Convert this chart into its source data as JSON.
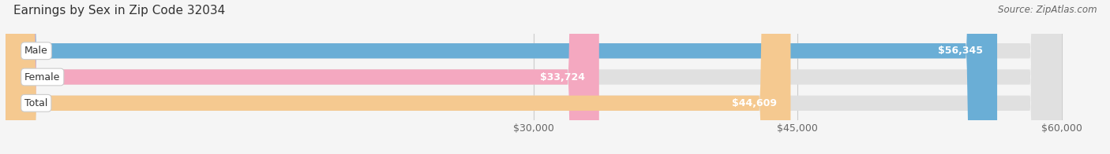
{
  "title": "Earnings by Sex in Zip Code 32034",
  "source": "Source: ZipAtlas.com",
  "categories": [
    "Male",
    "Female",
    "Total"
  ],
  "values": [
    56345,
    33724,
    44609
  ],
  "bar_colors": [
    "#6aaed6",
    "#f4a8c0",
    "#f5c990"
  ],
  "bar_bg_color": "#e0e0e0",
  "x_min": 0,
  "x_max": 60000,
  "x_ticks": [
    30000,
    45000,
    60000
  ],
  "x_tick_labels": [
    "$30,000",
    "$45,000",
    "$60,000"
  ],
  "value_labels": [
    "$56,345",
    "$33,724",
    "$44,609"
  ],
  "title_fontsize": 11,
  "source_fontsize": 8.5,
  "bar_label_fontsize": 9,
  "tick_fontsize": 9,
  "background_color": "#f5f5f5",
  "bar_height": 0.58
}
